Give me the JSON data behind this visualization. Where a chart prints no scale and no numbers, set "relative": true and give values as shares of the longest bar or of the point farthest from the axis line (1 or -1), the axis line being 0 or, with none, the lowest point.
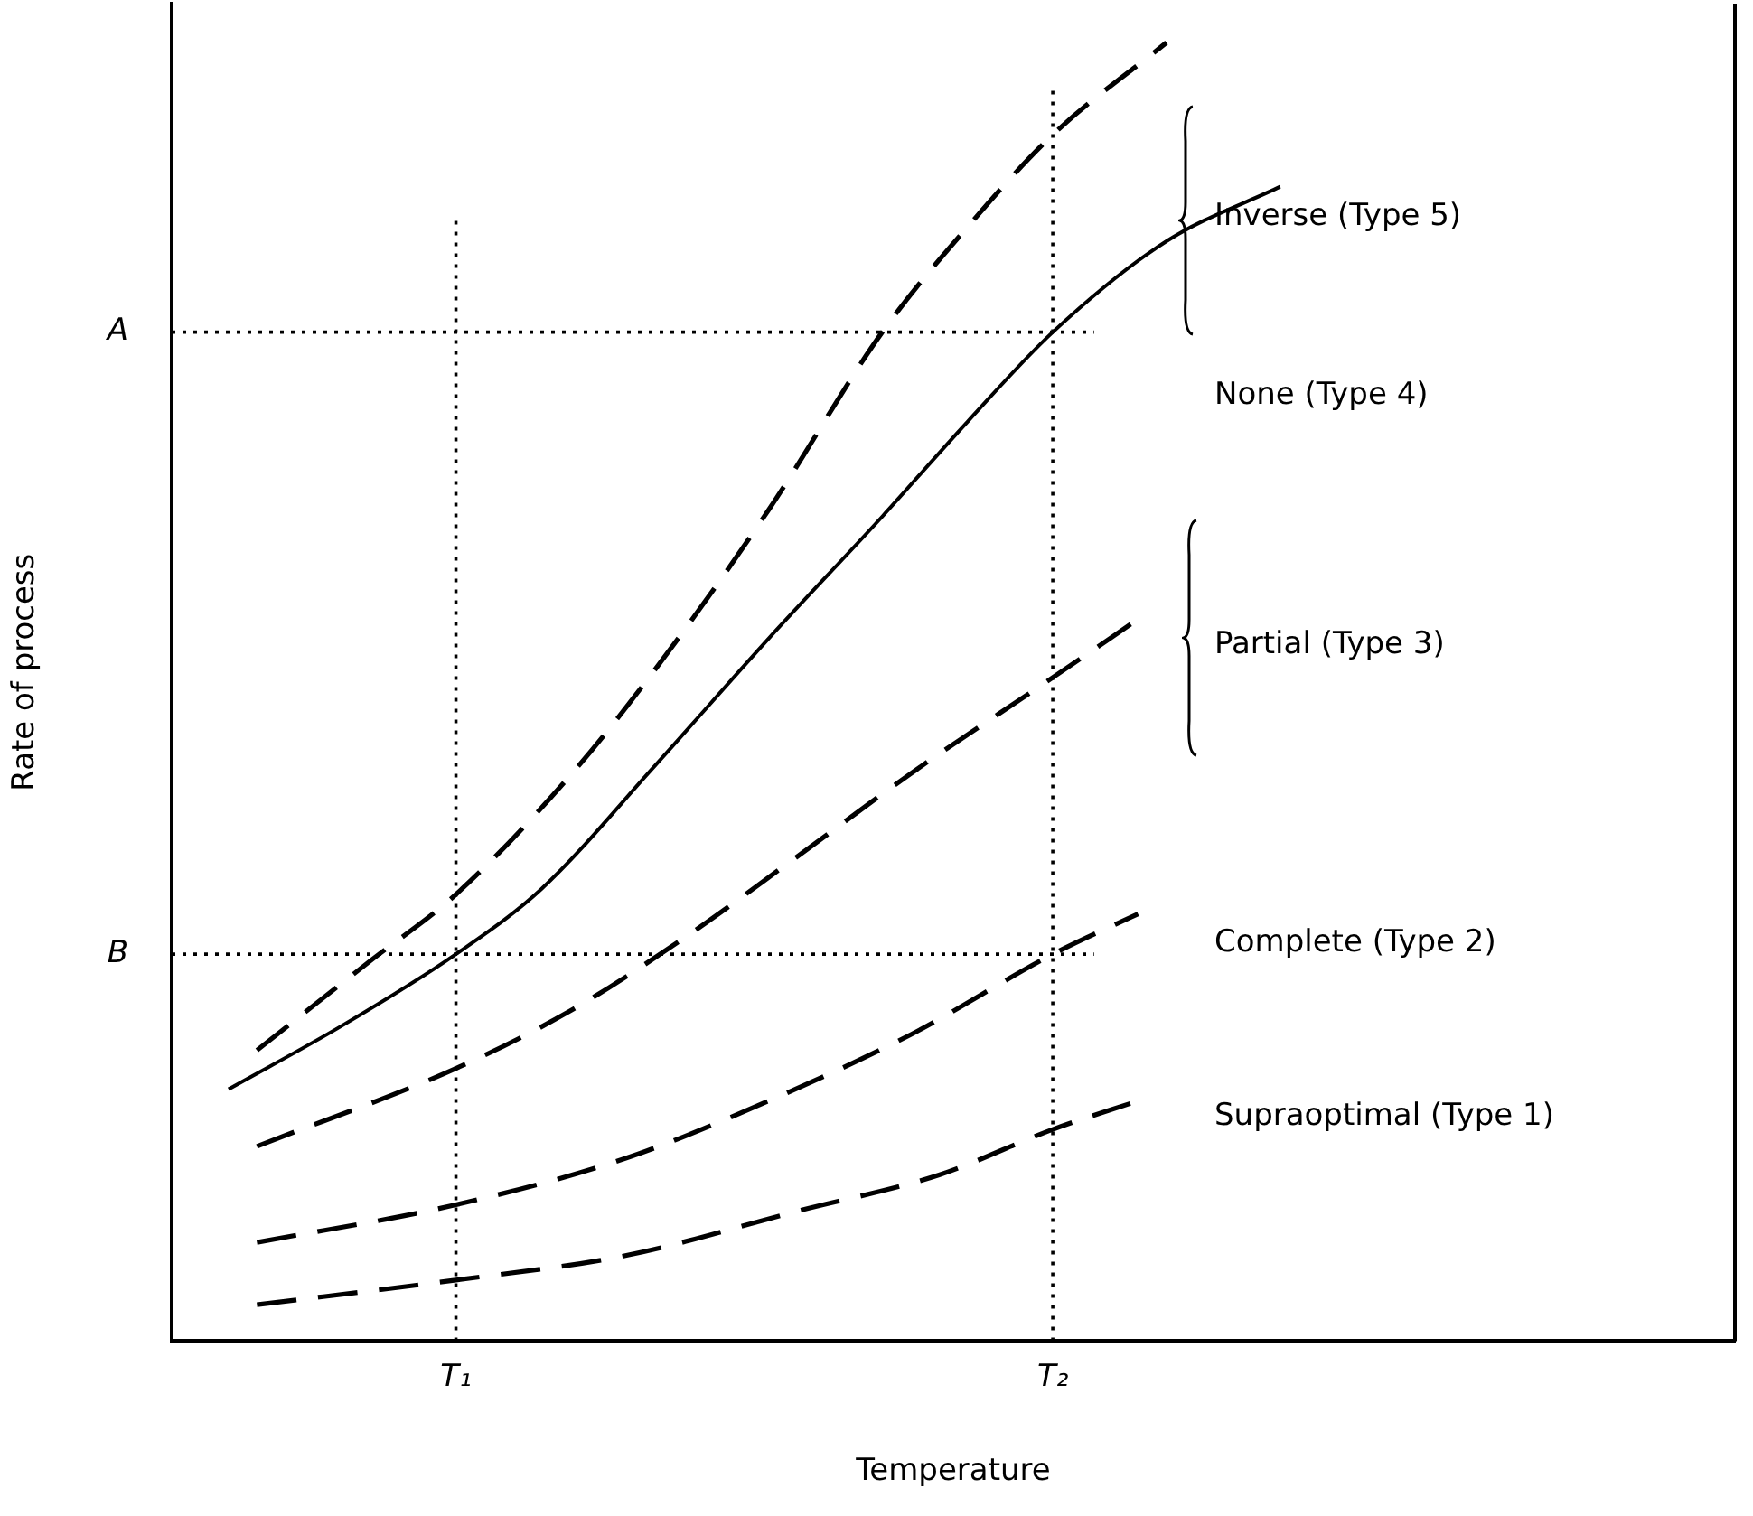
{
  "chart_data": {
    "type": "line",
    "relative": true,
    "xlabel": "Temperature",
    "ylabel": "Rate of process",
    "categories": [
      null,
      null,
      null,
      null,
      null,
      null,
      null,
      null,
      null,
      null,
      "T₁",
      null,
      null,
      null,
      null,
      null,
      null,
      null,
      null,
      null,
      null,
      null,
      null,
      null,
      null,
      null,
      null,
      null,
      null,
      null,
      null,
      "T₂",
      null,
      null,
      null,
      null,
      null,
      null,
      null,
      null,
      null,
      null,
      null,
      null,
      null,
      null,
      null,
      null,
      null,
      null,
      null,
      null,
      null,
      null,
      null,
      null
    ],
    "series": [
      {
        "color": "#000000",
        "line_style": "dashed",
        "values": [
          null,
          null,
          null,
          0.224,
          null,
          null,
          null,
          0.293,
          null,
          null,
          0.344,
          null,
          null,
          null,
          0.435,
          null,
          null,
          0.517,
          null,
          null,
          null,
          0.64,
          null,
          null,
          null,
          0.777,
          null,
          null,
          0.858,
          null,
          null,
          0.929,
          null,
          null,
          null,
          1.0,
          null,
          null,
          null,
          null,
          null,
          null,
          null,
          null,
          null,
          null,
          null,
          null,
          null,
          null,
          null,
          null,
          null,
          null,
          null,
          null
        ]
      },
      {
        "color": "#000000",
        "line_style": "solid",
        "values": [
          null,
          null,
          0.194,
          null,
          null,
          null,
          0.243,
          null,
          null,
          null,
          0.298,
          null,
          null,
          0.348,
          null,
          null,
          null,
          0.443,
          null,
          null,
          null,
          0.541,
          null,
          null,
          null,
          0.635,
          null,
          null,
          0.708,
          null,
          null,
          0.777,
          null,
          null,
          null,
          0.847,
          null,
          null,
          null,
          0.889,
          null,
          null,
          null,
          null,
          null,
          null,
          null,
          null,
          null,
          null,
          null,
          null,
          null,
          null,
          null,
          null
        ]
      },
      {
        "color": "#000000",
        "line_style": "dashed",
        "values": [
          null,
          null,
          null,
          0.15,
          null,
          null,
          null,
          null,
          null,
          null,
          0.21,
          null,
          null,
          null,
          0.254,
          null,
          null,
          null,
          0.31,
          null,
          null,
          null,
          0.373,
          null,
          null,
          null,
          0.437,
          null,
          null,
          null,
          null,
          0.511,
          null,
          null,
          0.556,
          null,
          null,
          null,
          null,
          null,
          null,
          null,
          null,
          null,
          null,
          null,
          null,
          null,
          null,
          null,
          null,
          null,
          null,
          null,
          null,
          null
        ]
      },
      {
        "color": "#000000",
        "line_style": "dashed",
        "values": [
          null,
          null,
          null,
          0.076,
          null,
          null,
          null,
          null,
          null,
          null,
          0.105,
          null,
          null,
          null,
          null,
          null,
          0.141,
          null,
          null,
          null,
          null,
          0.185,
          null,
          null,
          null,
          null,
          0.236,
          null,
          null,
          null,
          null,
          0.298,
          null,
          null,
          0.329,
          null,
          null,
          null,
          null,
          null,
          null,
          null,
          null,
          null,
          null,
          null,
          null,
          null,
          null,
          null,
          null,
          null,
          null,
          null,
          null,
          null
        ]
      },
      {
        "color": "#000000",
        "line_style": "dashed",
        "values": [
          null,
          null,
          null,
          0.028,
          null,
          null,
          null,
          null,
          null,
          null,
          0.047,
          null,
          null,
          null,
          null,
          null,
          0.066,
          null,
          null,
          null,
          null,
          null,
          0.1,
          null,
          null,
          null,
          null,
          0.128,
          null,
          null,
          null,
          0.163,
          null,
          null,
          0.185,
          null,
          null,
          null,
          null,
          null,
          null,
          null,
          null,
          null,
          null,
          null,
          null,
          null,
          null,
          null,
          null,
          null,
          null,
          null,
          null,
          null
        ]
      }
    ],
    "ref_lines": [
      {
        "axis": "x",
        "value": "T₁",
        "line_style": "dotted"
      },
      {
        "axis": "x",
        "value": "T₂",
        "line_style": "dotted"
      },
      {
        "axis": "y",
        "value": 0.777,
        "label": "A",
        "line_style": "dotted"
      },
      {
        "axis": "y",
        "value": 0.298,
        "label": "B",
        "line_style": "dotted"
      }
    ],
    "annotations": [
      "Inverse (Type 5)",
      "None (Type 4)",
      "Partial (Type 3)",
      "Complete (Type 2)",
      "Supraoptimal (Type 1)"
    ],
    "marker": "none",
    "grid": false,
    "legend": false
  }
}
